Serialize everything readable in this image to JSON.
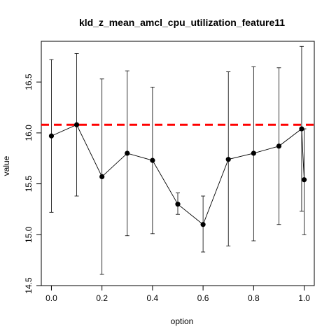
{
  "chart_data": {
    "type": "line",
    "title": "kld_z_mean_amcl_cpu_utilization_feature11",
    "xlabel": "option",
    "ylabel": "value",
    "xlim": [
      -0.04,
      1.04
    ],
    "ylim": [
      14.5,
      16.9
    ],
    "x_ticks": [
      0.0,
      0.2,
      0.4,
      0.6,
      0.8,
      1.0
    ],
    "x_tick_labels": [
      "0.0",
      "0.2",
      "0.4",
      "0.6",
      "0.8",
      "1.0"
    ],
    "y_ticks": [
      14.5,
      15.0,
      15.5,
      16.0,
      16.5
    ],
    "y_tick_labels": [
      "14.5",
      "15.0",
      "15.5",
      "16.0",
      "16.5"
    ],
    "grid": false,
    "series": [
      {
        "x": [
          0.0,
          0.1,
          0.2,
          0.3,
          0.4,
          0.5,
          0.6,
          0.7,
          0.8,
          0.9,
          0.99,
          1.0
        ],
        "y": [
          15.97,
          16.08,
          15.57,
          15.8,
          15.73,
          15.3,
          15.1,
          15.74,
          15.8,
          15.87,
          16.04,
          15.54
        ],
        "lower": [
          15.22,
          15.38,
          14.61,
          14.99,
          15.01,
          15.2,
          14.83,
          14.89,
          14.94,
          15.1,
          15.23,
          15.0
        ],
        "upper": [
          16.72,
          16.78,
          16.53,
          16.61,
          16.45,
          15.41,
          15.38,
          16.6,
          16.65,
          16.64,
          16.85,
          16.04
        ]
      }
    ],
    "reference_line": {
      "y": 16.08,
      "color": "#ff0000",
      "style": "dashed"
    },
    "colors": {
      "line": "#000000",
      "marker": "#000000",
      "errorbar": "#000000",
      "axis": "#000000"
    }
  }
}
